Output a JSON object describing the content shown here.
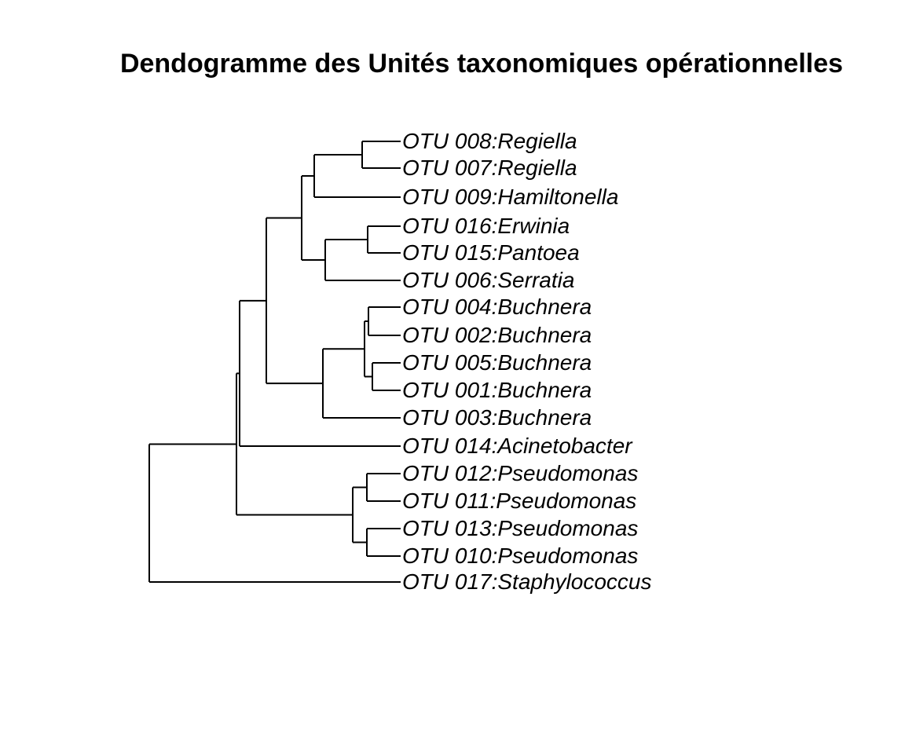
{
  "title": "Dendogramme des Unités taxonomiques opérationnelles",
  "leaves": [
    "OTU 008:Regiella",
    "OTU 007:Regiella",
    "OTU 009:Hamiltonella",
    "OTU 016:Erwinia",
    "OTU 015:Pantoea",
    "OTU 006:Serratia",
    "OTU 004:Buchnera",
    "OTU 002:Buchnera",
    "OTU 005:Buchnera",
    "OTU 001:Buchnera",
    "OTU 003:Buchnera",
    "OTU 014:Acinetobacter",
    "OTU 012:Pseudomonas",
    "OTU 011:Pseudomonas",
    "OTU 013:Pseudomonas",
    "OTU 010:Pseudomonas",
    "OTU 017:Staphylococcus"
  ],
  "colors": {
    "line": "#000000",
    "text": "#000000",
    "background": "#ffffff"
  }
}
